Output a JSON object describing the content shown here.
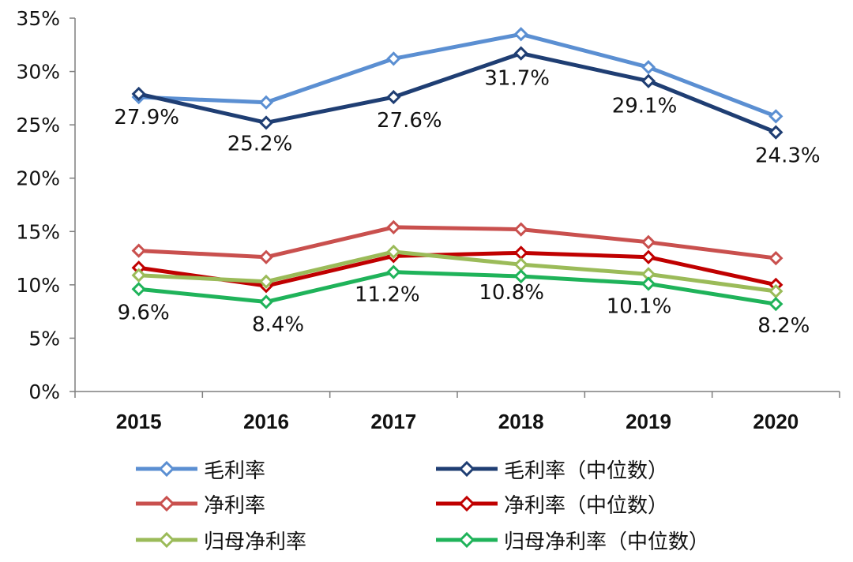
{
  "chart_data": {
    "type": "line",
    "title": "",
    "xlabel": "",
    "ylabel": "",
    "categories": [
      "2015",
      "2016",
      "2017",
      "2018",
      "2019",
      "2020"
    ],
    "y_ticks": [
      "0%",
      "5%",
      "10%",
      "15%",
      "20%",
      "25%",
      "30%",
      "35%"
    ],
    "ylim": [
      0,
      35
    ],
    "grid": false,
    "legend_position": "bottom",
    "series": [
      {
        "name": "毛利率",
        "color": "#5b8fd2",
        "marker": "diamond-open",
        "values": [
          27.6,
          27.1,
          31.2,
          33.5,
          30.4,
          25.8
        ],
        "labels": [
          "",
          "",
          "",
          "",
          "",
          ""
        ]
      },
      {
        "name": "毛利率（中位数）",
        "color": "#1f3e73",
        "marker": "diamond-open",
        "values": [
          27.9,
          25.2,
          27.6,
          31.7,
          29.1,
          24.3
        ],
        "labels": [
          "27.9%",
          "25.2%",
          "27.6%",
          "31.7%",
          "29.1%",
          "24.3%"
        ]
      },
      {
        "name": "净利率",
        "color": "#c9504e",
        "marker": "diamond-open",
        "values": [
          13.2,
          12.6,
          15.4,
          15.2,
          14.0,
          12.5
        ],
        "labels": [
          "",
          "",
          "",
          "",
          "",
          ""
        ]
      },
      {
        "name": "净利率（中位数）",
        "color": "#c00000",
        "marker": "diamond-open",
        "values": [
          11.6,
          9.9,
          12.7,
          13.0,
          12.6,
          10.0
        ],
        "labels": [
          "",
          "",
          "",
          "",
          "",
          ""
        ]
      },
      {
        "name": "归母净利率",
        "color": "#9bbb59",
        "marker": "diamond-open",
        "values": [
          10.9,
          10.3,
          13.1,
          11.9,
          11.0,
          9.4
        ],
        "labels": [
          "",
          "",
          "",
          "",
          "",
          ""
        ]
      },
      {
        "name": "归母净利率（中位数）",
        "color": "#1fb35a",
        "marker": "diamond-open",
        "values": [
          9.6,
          8.4,
          11.2,
          10.8,
          10.1,
          8.2
        ],
        "labels": [
          "9.6%",
          "8.4%",
          "11.2%",
          "10.8%",
          "10.1%",
          "8.2%"
        ]
      }
    ]
  },
  "legend": {
    "items": [
      {
        "label": "毛利率",
        "color": "#5b8fd2"
      },
      {
        "label": "毛利率（中位数）",
        "color": "#1f3e73"
      },
      {
        "label": "净利率",
        "color": "#c9504e"
      },
      {
        "label": "净利率（中位数）",
        "color": "#c00000"
      },
      {
        "label": "归母净利率",
        "color": "#9bbb59"
      },
      {
        "label": "归母净利率（中位数）",
        "color": "#1fb35a"
      }
    ]
  }
}
